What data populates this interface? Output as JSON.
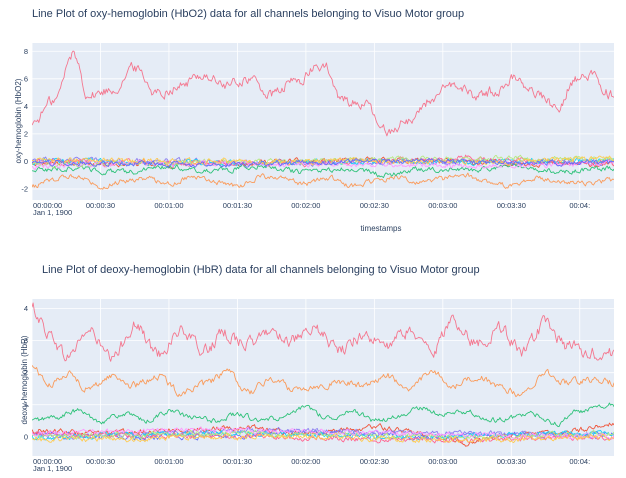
{
  "chart_data": [
    {
      "type": "line",
      "title": "Line Plot of oxy-hemoglobin (HbO2) data for all channels belonging to Visuo Motor group",
      "xlabel": "timestamps",
      "ylabel": "oxy-hemoglobin (HbO2)",
      "x_ticks": [
        "00:00:00",
        "00:00:30",
        "00:01:00",
        "00:01:30",
        "00:02:00",
        "00:02:30",
        "00:03:00",
        "00:03:30",
        "00:04:"
      ],
      "x_date": "Jan 1, 1900",
      "xlim_seconds": [
        0,
        255
      ],
      "ylim": [
        -2.8,
        8.6
      ],
      "y_ticks": [
        -2,
        0,
        2,
        4,
        6,
        8
      ],
      "series": [
        {
          "color": "#ef553b",
          "keypoints": [
            [
              0,
              -0.1
            ],
            [
              60,
              -0.2
            ],
            [
              120,
              0.0
            ],
            [
              160,
              0.1
            ],
            [
              200,
              -0.1
            ],
            [
              255,
              -0.2
            ]
          ]
        },
        {
          "color": "#f4778f",
          "keypoints": [
            [
              0,
              2.8
            ],
            [
              10,
              4.5
            ],
            [
              18,
              7.8
            ],
            [
              25,
              4.8
            ],
            [
              35,
              5.2
            ],
            [
              45,
              6.8
            ],
            [
              55,
              5.0
            ],
            [
              65,
              5.5
            ],
            [
              75,
              6.3
            ],
            [
              85,
              5.5
            ],
            [
              95,
              6.0
            ],
            [
              105,
              4.8
            ],
            [
              115,
              5.8
            ],
            [
              128,
              7.0
            ],
            [
              135,
              4.5
            ],
            [
              145,
              4.2
            ],
            [
              155,
              2.2
            ],
            [
              165,
              3.0
            ],
            [
              175,
              4.5
            ],
            [
              185,
              5.5
            ],
            [
              195,
              4.8
            ],
            [
              205,
              5.2
            ],
            [
              212,
              6.2
            ],
            [
              220,
              5.0
            ],
            [
              230,
              4.0
            ],
            [
              238,
              6.0
            ],
            [
              245,
              6.2
            ],
            [
              255,
              4.8
            ]
          ]
        },
        {
          "color": "#fa9b5b",
          "keypoints": [
            [
              0,
              -1.8
            ],
            [
              10,
              -1.3
            ],
            [
              20,
              -1.0
            ],
            [
              30,
              -1.8
            ],
            [
              40,
              -1.4
            ],
            [
              50,
              -1.2
            ],
            [
              60,
              -1.6
            ],
            [
              70,
              -1.1
            ],
            [
              80,
              -1.5
            ],
            [
              90,
              -1.8
            ],
            [
              100,
              -1.1
            ],
            [
              110,
              -1.3
            ],
            [
              120,
              -1.6
            ],
            [
              130,
              -1.2
            ],
            [
              140,
              -1.8
            ],
            [
              150,
              -1.4
            ],
            [
              160,
              -1.1
            ],
            [
              170,
              -1.6
            ],
            [
              180,
              -1.3
            ],
            [
              190,
              -1.0
            ],
            [
              200,
              -1.5
            ],
            [
              210,
              -1.8
            ],
            [
              220,
              -1.2
            ],
            [
              230,
              -1.4
            ],
            [
              240,
              -1.6
            ],
            [
              255,
              -1.4
            ]
          ]
        },
        {
          "color": "#2fc27a",
          "keypoints": [
            [
              0,
              -0.6
            ],
            [
              20,
              -0.5
            ],
            [
              40,
              -0.8
            ],
            [
              60,
              -0.4
            ],
            [
              80,
              -0.7
            ],
            [
              100,
              -0.3
            ],
            [
              120,
              -0.8
            ],
            [
              140,
              -0.5
            ],
            [
              155,
              -1.0
            ],
            [
              170,
              -0.5
            ],
            [
              190,
              -0.6
            ],
            [
              210,
              -0.4
            ],
            [
              230,
              -0.7
            ],
            [
              255,
              -0.5
            ]
          ]
        },
        {
          "color": "#8b7ff0",
          "keypoints": [
            [
              0,
              0.1
            ],
            [
              60,
              0.0
            ],
            [
              120,
              -0.1
            ],
            [
              180,
              0.0
            ],
            [
              255,
              -0.1
            ]
          ]
        },
        {
          "color": "#19d3f3",
          "keypoints": [
            [
              0,
              0.0
            ],
            [
              80,
              -0.1
            ],
            [
              160,
              0.0
            ],
            [
              255,
              0.0
            ]
          ]
        },
        {
          "color": "#ff6692",
          "keypoints": [
            [
              0,
              0.0
            ],
            [
              90,
              -0.2
            ],
            [
              180,
              0.1
            ],
            [
              190,
              0.4
            ],
            [
              200,
              0.1
            ],
            [
              255,
              -0.1
            ]
          ]
        },
        {
          "color": "#b6e880",
          "keypoints": [
            [
              0,
              -0.2
            ],
            [
              100,
              0.0
            ],
            [
              200,
              0.2
            ],
            [
              255,
              0.1
            ]
          ]
        },
        {
          "color": "#ff97ff",
          "keypoints": [
            [
              0,
              -0.3
            ],
            [
              60,
              -0.1
            ],
            [
              130,
              -0.2
            ],
            [
              200,
              -0.3
            ],
            [
              255,
              -0.2
            ]
          ]
        },
        {
          "color": "#fecb52",
          "keypoints": [
            [
              0,
              0.1
            ],
            [
              100,
              0.0
            ],
            [
              200,
              0.0
            ],
            [
              255,
              0.2
            ]
          ]
        },
        {
          "color": "#636efa",
          "keypoints": [
            [
              0,
              -0.1
            ],
            [
              80,
              -0.2
            ],
            [
              160,
              0.0
            ],
            [
              255,
              -0.1
            ]
          ]
        }
      ]
    },
    {
      "type": "line",
      "title": "Line Plot of deoxy-hemoglobin (HbR) data for all channels belonging to Visuo Motor group",
      "xlabel": "",
      "ylabel": "deoxy-hemoglobin (HbR)",
      "x_ticks": [
        "00:00:00",
        "00:00:30",
        "00:01:00",
        "00:01:30",
        "00:02:00",
        "00:02:30",
        "00:03:00",
        "00:03:30",
        "00:04:"
      ],
      "x_date": "Jan 1, 1900",
      "xlim_seconds": [
        0,
        255
      ],
      "ylim": [
        -0.6,
        4.3
      ],
      "y_ticks": [
        0,
        1,
        2,
        3,
        4
      ],
      "series": [
        {
          "color": "#f4778f",
          "keypoints": [
            [
              0,
              4.0
            ],
            [
              8,
              3.2
            ],
            [
              15,
              2.5
            ],
            [
              25,
              3.3
            ],
            [
              35,
              2.4
            ],
            [
              45,
              3.5
            ],
            [
              55,
              2.6
            ],
            [
              65,
              3.3
            ],
            [
              75,
              2.7
            ],
            [
              85,
              3.2
            ],
            [
              95,
              2.9
            ],
            [
              105,
              3.3
            ],
            [
              115,
              3.0
            ],
            [
              125,
              3.3
            ],
            [
              135,
              2.7
            ],
            [
              145,
              3.2
            ],
            [
              155,
              2.8
            ],
            [
              165,
              3.3
            ],
            [
              175,
              2.7
            ],
            [
              185,
              3.6
            ],
            [
              195,
              2.9
            ],
            [
              205,
              3.4
            ],
            [
              215,
              2.6
            ],
            [
              225,
              3.5
            ],
            [
              235,
              2.8
            ],
            [
              245,
              2.6
            ],
            [
              255,
              2.6
            ]
          ]
        },
        {
          "color": "#fa9b5b",
          "keypoints": [
            [
              0,
              2.2
            ],
            [
              8,
              1.6
            ],
            [
              15,
              2.0
            ],
            [
              25,
              1.5
            ],
            [
              35,
              1.9
            ],
            [
              45,
              1.6
            ],
            [
              55,
              1.9
            ],
            [
              65,
              1.4
            ],
            [
              75,
              1.6
            ],
            [
              85,
              2.0
            ],
            [
              95,
              1.4
            ],
            [
              105,
              1.8
            ],
            [
              115,
              1.5
            ],
            [
              125,
              1.6
            ],
            [
              135,
              1.7
            ],
            [
              145,
              1.6
            ],
            [
              155,
              1.9
            ],
            [
              165,
              1.5
            ],
            [
              175,
              2.0
            ],
            [
              185,
              1.6
            ],
            [
              195,
              1.9
            ],
            [
              205,
              1.5
            ],
            [
              215,
              1.3
            ],
            [
              225,
              2.0
            ],
            [
              235,
              1.7
            ],
            [
              245,
              1.8
            ],
            [
              255,
              1.7
            ]
          ]
        },
        {
          "color": "#2fc27a",
          "keypoints": [
            [
              0,
              0.5
            ],
            [
              10,
              0.6
            ],
            [
              20,
              0.8
            ],
            [
              30,
              0.5
            ],
            [
              40,
              0.7
            ],
            [
              50,
              0.5
            ],
            [
              60,
              0.8
            ],
            [
              70,
              0.6
            ],
            [
              80,
              0.5
            ],
            [
              90,
              0.7
            ],
            [
              100,
              0.5
            ],
            [
              110,
              0.6
            ],
            [
              120,
              0.9
            ],
            [
              130,
              0.6
            ],
            [
              140,
              0.8
            ],
            [
              150,
              0.5
            ],
            [
              160,
              0.6
            ],
            [
              170,
              0.9
            ],
            [
              180,
              0.7
            ],
            [
              190,
              0.8
            ],
            [
              200,
              0.5
            ],
            [
              210,
              0.6
            ],
            [
              220,
              0.7
            ],
            [
              230,
              0.4
            ],
            [
              240,
              0.8
            ],
            [
              255,
              1.0
            ]
          ]
        },
        {
          "color": "#ef553b",
          "keypoints": [
            [
              0,
              0.2
            ],
            [
              30,
              0.1
            ],
            [
              60,
              0.2
            ],
            [
              90,
              0.3
            ],
            [
              120,
              0.1
            ],
            [
              150,
              0.3
            ],
            [
              180,
              0.0
            ],
            [
              190,
              -0.2
            ],
            [
              200,
              0.0
            ],
            [
              230,
              0.1
            ],
            [
              255,
              0.4
            ]
          ]
        },
        {
          "color": "#636efa",
          "keypoints": [
            [
              0,
              0.1
            ],
            [
              60,
              0.0
            ],
            [
              120,
              0.1
            ],
            [
              180,
              0.0
            ],
            [
              255,
              0.1
            ]
          ]
        },
        {
          "color": "#8b7ff0",
          "keypoints": [
            [
              0,
              0.0
            ],
            [
              100,
              0.2
            ],
            [
              200,
              0.1
            ],
            [
              255,
              0.0
            ]
          ]
        },
        {
          "color": "#19d3f3",
          "keypoints": [
            [
              0,
              0.0
            ],
            [
              80,
              0.1
            ],
            [
              160,
              0.0
            ],
            [
              255,
              0.1
            ]
          ]
        },
        {
          "color": "#ff6692",
          "keypoints": [
            [
              0,
              0.1
            ],
            [
              90,
              0.0
            ],
            [
              180,
              -0.1
            ],
            [
              255,
              0.0
            ]
          ]
        },
        {
          "color": "#b6e880",
          "keypoints": [
            [
              0,
              0.0
            ],
            [
              100,
              0.1
            ],
            [
              200,
              0.0
            ],
            [
              255,
              0.1
            ]
          ]
        },
        {
          "color": "#ff97ff",
          "keypoints": [
            [
              0,
              0.1
            ],
            [
              80,
              0.2
            ],
            [
              160,
              0.1
            ],
            [
              255,
              0.0
            ]
          ]
        },
        {
          "color": "#fecb52",
          "keypoints": [
            [
              0,
              -0.1
            ],
            [
              100,
              0.0
            ],
            [
              200,
              -0.1
            ],
            [
              255,
              0.0
            ]
          ]
        }
      ]
    }
  ],
  "colors": {
    "plot_bg": "#e5ecf6",
    "grid": "#ffffff",
    "text": "#2a3f5f"
  }
}
